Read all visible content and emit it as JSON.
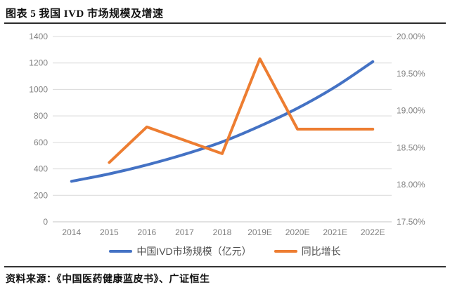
{
  "header": {
    "title": "图表 5 我国 IVD 市场规模及增速"
  },
  "footer": {
    "source": "资料来源：《中国医药健康蓝皮书》、广证恒生"
  },
  "chart_data": {
    "type": "line",
    "categories": [
      "2014",
      "2015",
      "2016",
      "2017",
      "2018",
      "2019E",
      "2020E",
      "2021E",
      "2022E"
    ],
    "series": [
      {
        "name": "中国IVD市场规模（亿元）",
        "axis": "left",
        "color": "#4472C4",
        "smooth": true,
        "values": [
          306,
          362,
          430,
          510,
          604,
          723,
          858,
          1019,
          1210
        ]
      },
      {
        "name": "同比增长",
        "axis": "right",
        "color": "#ED7D31",
        "smooth": false,
        "values": [
          null,
          18.3,
          18.78,
          18.6,
          18.42,
          19.7,
          18.75,
          18.75,
          18.75
        ]
      }
    ],
    "left_axis": {
      "min": 0,
      "max": 1400,
      "tick_labels": [
        "0",
        "200",
        "400",
        "600",
        "800",
        "1000",
        "1200",
        "1400"
      ]
    },
    "right_axis": {
      "min": 17.5,
      "max": 20.0,
      "tick_labels": [
        "17.50%",
        "18.00%",
        "18.50%",
        "19.00%",
        "19.50%",
        "20.00%"
      ]
    },
    "grid": true,
    "legend_position": "bottom",
    "style": {
      "grid_color": "#d9d9d9",
      "axis_line_color": "#c6c6c6",
      "tick_label_color": "#7f7f7f",
      "tick_font_size": 12
    }
  }
}
